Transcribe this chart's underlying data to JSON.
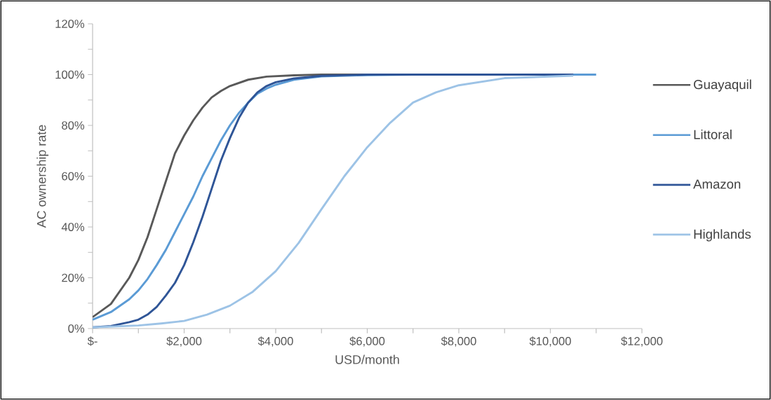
{
  "chart_data": {
    "type": "line",
    "xlabel": "USD/month",
    "ylabel": "AC ownership rate",
    "xlim": [
      0,
      12000
    ],
    "ylim": [
      0,
      120
    ],
    "xticks": [
      {
        "value": 0,
        "label": "$-"
      },
      {
        "value": 1000,
        "label": null
      },
      {
        "value": 2000,
        "label": "$2,000"
      },
      {
        "value": 3000,
        "label": null
      },
      {
        "value": 4000,
        "label": "$4,000"
      },
      {
        "value": 5000,
        "label": null
      },
      {
        "value": 6000,
        "label": "$6,000"
      },
      {
        "value": 7000,
        "label": null
      },
      {
        "value": 8000,
        "label": "$8,000"
      },
      {
        "value": 9000,
        "label": null
      },
      {
        "value": 10000,
        "label": "$10,000"
      },
      {
        "value": 11000,
        "label": null
      },
      {
        "value": 12000,
        "label": "$12,000"
      }
    ],
    "yticks": [
      {
        "value": 0,
        "label": "0%"
      },
      {
        "value": 10,
        "label": null
      },
      {
        "value": 20,
        "label": "20%"
      },
      {
        "value": 30,
        "label": null
      },
      {
        "value": 40,
        "label": "40%"
      },
      {
        "value": 50,
        "label": null
      },
      {
        "value": 60,
        "label": "60%"
      },
      {
        "value": 70,
        "label": null
      },
      {
        "value": 80,
        "label": "80%"
      },
      {
        "value": 90,
        "label": null
      },
      {
        "value": 100,
        "label": "100%"
      },
      {
        "value": 110,
        "label": null
      },
      {
        "value": 120,
        "label": "120%"
      }
    ],
    "grid": false,
    "legend": "right",
    "marker": "none",
    "line_style": "solid",
    "series": [
      {
        "name": "Guayaquil",
        "color": "#595959",
        "x": [
          0,
          400,
          800,
          1000,
          1200,
          1400,
          1600,
          1800,
          2000,
          2200,
          2400,
          2600,
          2800,
          3000,
          3400,
          3800,
          4400,
          5000,
          7000,
          10500
        ],
        "values": [
          4.5,
          9.7,
          20,
          27,
          36,
          47,
          58,
          69,
          76,
          82,
          87,
          91,
          93.5,
          95.5,
          98,
          99.2,
          99.7,
          100,
          100,
          100
        ]
      },
      {
        "name": "Littoral",
        "color": "#5b9bd5",
        "x": [
          0,
          400,
          800,
          1000,
          1200,
          1400,
          1600,
          1800,
          2000,
          2200,
          2400,
          2600,
          2800,
          3000,
          3200,
          3400,
          3600,
          3800,
          4000,
          4400,
          5000,
          6000,
          7000,
          11000
        ],
        "values": [
          3.5,
          6.5,
          11.5,
          15,
          19.5,
          25,
          31,
          38,
          45,
          52,
          60,
          67,
          74,
          80,
          85,
          89,
          92.5,
          94.5,
          96,
          98,
          99.3,
          99.8,
          100,
          100
        ]
      },
      {
        "name": "Amazon",
        "color": "#2f5597",
        "x": [
          0,
          400,
          800,
          1000,
          1200,
          1400,
          1600,
          1800,
          2000,
          2200,
          2400,
          2600,
          2800,
          3000,
          3200,
          3400,
          3600,
          3800,
          4000,
          4400,
          5000,
          6000,
          10500
        ],
        "values": [
          0.5,
          1,
          2.5,
          3.5,
          5.5,
          8.5,
          13,
          18,
          25,
          34,
          44,
          55,
          66,
          75,
          83,
          89,
          93,
          95.5,
          97,
          98.5,
          99.5,
          100,
          100
        ]
      },
      {
        "name": "Highlands",
        "color": "#9dc3e6",
        "x": [
          0,
          1000,
          1500,
          2000,
          2500,
          3000,
          3500,
          4000,
          4500,
          5000,
          5500,
          6000,
          6500,
          7000,
          7500,
          8000,
          9000,
          10500
        ],
        "values": [
          0.5,
          1.2,
          2,
          3,
          5.5,
          9,
          14.5,
          22.6,
          33.7,
          47,
          60,
          71.4,
          81,
          89,
          93,
          95.8,
          98.6,
          99.6
        ]
      }
    ]
  }
}
